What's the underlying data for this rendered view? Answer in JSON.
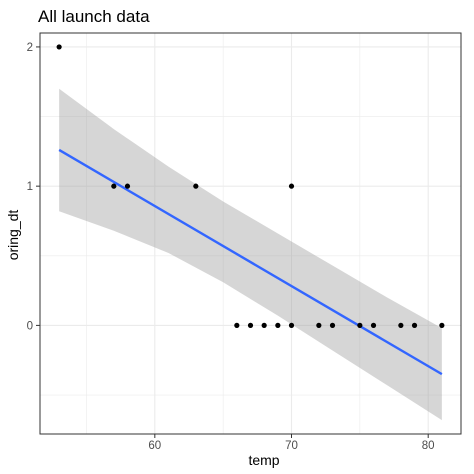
{
  "chart_data": {
    "type": "scatter",
    "title": "All launch data",
    "xlabel": "temp",
    "ylabel": "oring_dt",
    "xlim": [
      51.6,
      82.4
    ],
    "ylim": [
      -0.78,
      2.1
    ],
    "x_ticks": [
      60,
      70,
      80
    ],
    "y_ticks": [
      0,
      1,
      2
    ],
    "x_minor_ticks": [
      55,
      65,
      75
    ],
    "y_minor_ticks": [
      -0.5,
      0.5,
      1.5
    ],
    "grid": true,
    "points": [
      {
        "x": 53,
        "y": 2
      },
      {
        "x": 57,
        "y": 1
      },
      {
        "x": 58,
        "y": 1
      },
      {
        "x": 63,
        "y": 1
      },
      {
        "x": 66,
        "y": 0
      },
      {
        "x": 67,
        "y": 0
      },
      {
        "x": 68,
        "y": 0
      },
      {
        "x": 69,
        "y": 0
      },
      {
        "x": 70,
        "y": 0
      },
      {
        "x": 70,
        "y": 1
      },
      {
        "x": 72,
        "y": 0
      },
      {
        "x": 73,
        "y": 0
      },
      {
        "x": 75,
        "y": 0
      },
      {
        "x": 76,
        "y": 0
      },
      {
        "x": 78,
        "y": 0
      },
      {
        "x": 79,
        "y": 0
      },
      {
        "x": 81,
        "y": 0
      }
    ],
    "fit_line": {
      "x": [
        53,
        81
      ],
      "y": [
        1.26,
        -0.35
      ]
    },
    "confidence_band": {
      "x": [
        53,
        57,
        61,
        65,
        69,
        73,
        77,
        81
      ],
      "lower": [
        0.82,
        0.68,
        0.52,
        0.31,
        0.07,
        -0.18,
        -0.43,
        -0.68
      ],
      "upper": [
        1.7,
        1.41,
        1.14,
        0.89,
        0.66,
        0.43,
        0.2,
        -0.02
      ]
    },
    "colors": {
      "points": "#000000",
      "line": "#3366FF",
      "band": "#999999",
      "grid": "#ebebeb",
      "panel_border": "#333333"
    }
  }
}
